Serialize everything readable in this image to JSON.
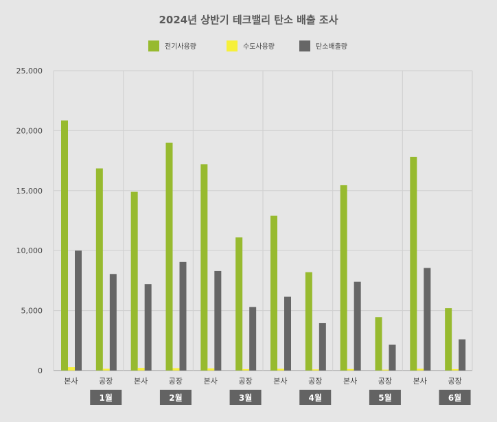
{
  "chart_data": {
    "type": "bar",
    "title": "2024년 상반기 테크밸리 탄소 배출 조사",
    "months": [
      "1월",
      "2월",
      "3월",
      "4월",
      "5월",
      "6월"
    ],
    "categories": [
      "본사",
      "공장",
      "본사",
      "공장",
      "본사",
      "공장",
      "본사",
      "공장",
      "본사",
      "공장",
      "본사",
      "공장"
    ],
    "series": [
      {
        "name": "전기사용량",
        "color": "#97ba2f",
        "values": [
          20850,
          16850,
          14900,
          19000,
          17200,
          11100,
          12900,
          8200,
          15450,
          4450,
          17800,
          5200
        ]
      },
      {
        "name": "수도사용량",
        "color": "#f6f03a",
        "values": [
          280,
          150,
          220,
          200,
          180,
          120,
          150,
          100,
          130,
          80,
          150,
          120
        ]
      },
      {
        "name": "탄소배출량",
        "color": "#666666",
        "values": [
          10000,
          8050,
          7200,
          9050,
          8300,
          5300,
          6150,
          3950,
          7400,
          2150,
          8550,
          2600
        ]
      }
    ],
    "ylim": [
      0,
      25000
    ],
    "yticks": [
      "0",
      "5,000",
      "10,000",
      "15,000",
      "20,000",
      "25,000"
    ],
    "ytick_values": [
      0,
      5000,
      10000,
      15000,
      20000,
      25000
    ],
    "legend_position": "top-center",
    "grid": true
  }
}
